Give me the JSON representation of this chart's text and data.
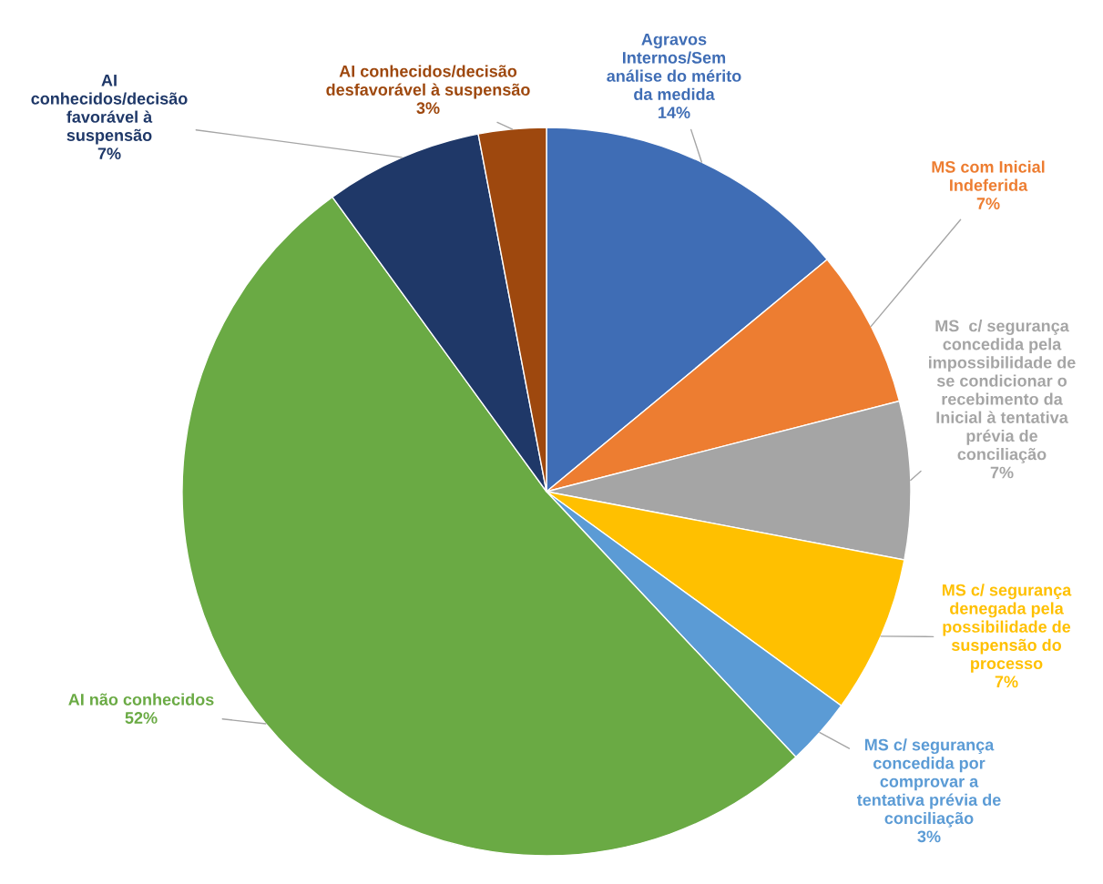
{
  "chart_data": {
    "type": "pie",
    "categories": [
      "Agravos\nInternos/Sem\nanálise do mérito\nda medida",
      "MS com Inicial\nIndeferida",
      "MS  c/ segurança\nconcedida pela\nimpossibilidade de\nse condicionar o\nrecebimento da\nInicial à tentativa\nprévia de\nconciliação",
      "MS c/ segurança\ndenegada pela\npossibilidade de\nsuspensão do\nprocesso",
      "MS c/ segurança\nconcedida por\ncomprovar a\ntentativa prévia de\nconciliação",
      "AI não conhecidos",
      "AI\nconhecidos/decisão\nfavorável à\nsuspensão",
      "AI conhecidos/decisão\ndesfavorável à suspensão"
    ],
    "values": [
      14,
      7,
      7,
      7,
      3,
      52,
      7,
      3
    ],
    "value_labels": [
      "14%",
      "7%",
      "7%",
      "7%",
      "3%",
      "52%",
      "7%",
      "3%"
    ],
    "colors": [
      "#3f6db5",
      "#ed7d31",
      "#a5a5a5",
      "#ffc000",
      "#5b9bd5",
      "#6aaa44",
      "#1f3868",
      "#9e480e"
    ]
  }
}
